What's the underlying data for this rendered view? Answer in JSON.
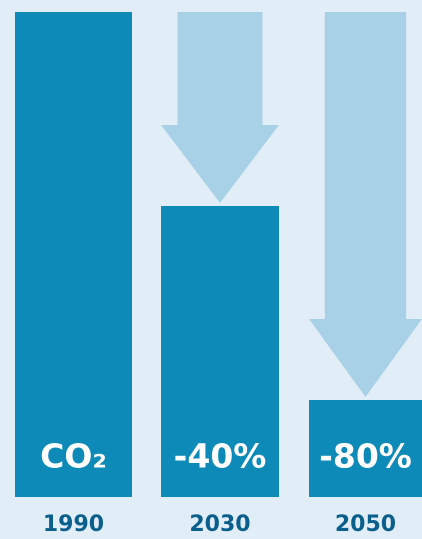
{
  "chart_data": {
    "type": "bar",
    "categories": [
      "1990",
      "2030",
      "2050"
    ],
    "values": [
      100,
      60,
      20
    ],
    "labels": [
      "CO₂",
      "-40%",
      "-80%"
    ],
    "ylim": [
      0,
      100
    ],
    "color": "#0d8ab7",
    "arrow_color": "#a8d0e7",
    "background": "#e2eef7"
  }
}
